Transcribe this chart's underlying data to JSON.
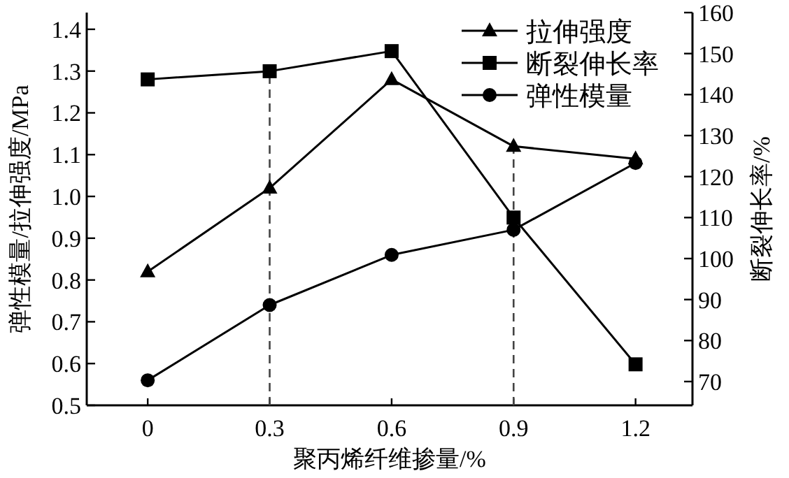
{
  "chart_data": {
    "type": "line",
    "xlabel": "聚丙烯纤维掺量/%",
    "ylabel": "弹性模量/拉伸强度/MPa",
    "y2label": "断裂伸长率/%",
    "x": [
      0,
      0.3,
      0.6,
      0.9,
      1.2
    ],
    "xlim": [
      -0.15,
      1.34
    ],
    "xticks": [
      {
        "value": 0,
        "label": "0"
      },
      0.3,
      0.6,
      0.9,
      1.2
    ],
    "ylim": [
      0.5,
      1.44
    ],
    "yticks": [
      0.5,
      0.6,
      0.7,
      0.8,
      0.9,
      {
        "value": 1.0,
        "label": "1.0"
      },
      1.1,
      1.2,
      1.3,
      1.4
    ],
    "y2lim": [
      64.2,
      160
    ],
    "y2ticks": [
      70,
      80,
      90,
      100,
      110,
      120,
      130,
      140,
      150,
      160
    ],
    "series": [
      {
        "name": "拉伸强度",
        "color": "#000000",
        "marker": "triangle",
        "values": [
          0.82,
          1.02,
          1.28,
          1.12,
          1.09
        ]
      },
      {
        "name": "断裂伸长率",
        "color": "#000000",
        "marker": "square",
        "axis": "y2",
        "values": [
          143.7,
          145.7,
          150.6,
          110.0,
          74.2
        ]
      },
      {
        "name": "弹性模量",
        "color": "#000000",
        "marker": "circle",
        "values": [
          0.56,
          0.74,
          0.86,
          0.92,
          1.08
        ]
      }
    ],
    "ref_lines": [
      {
        "axis": "x",
        "value": 0.3,
        "color": "#444444",
        "line_style": "dashed"
      },
      {
        "axis": "x",
        "value": 0.9,
        "color": "#444444",
        "line_style": "dashed"
      }
    ],
    "legend": "top right",
    "grid": false,
    "line_style": "solid"
  }
}
